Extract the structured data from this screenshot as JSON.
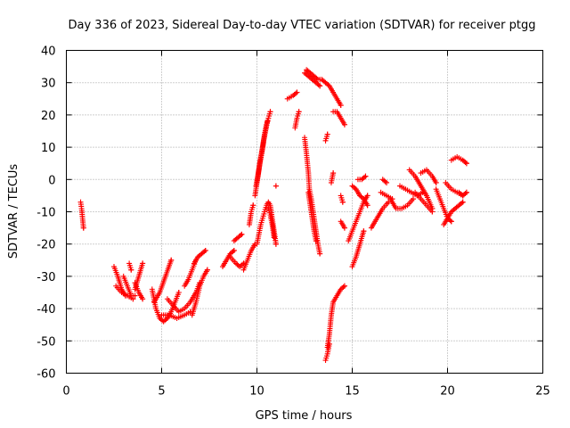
{
  "chart_data": {
    "type": "scatter",
    "title": "Day 336 of 2023, Sidereal Day-to-day VTEC variation (SDTVAR) for receiver ptgg",
    "xlabel": "GPS time / hours",
    "ylabel": "SDTVAR / TECUs",
    "xlim": [
      0,
      25
    ],
    "ylim": [
      -60,
      40
    ],
    "xticks": [
      0,
      5,
      10,
      15,
      20,
      25
    ],
    "yticks": [
      -60,
      -50,
      -40,
      -30,
      -20,
      -10,
      0,
      10,
      20,
      30,
      40
    ],
    "grid": true,
    "marker": "+",
    "color": "#ff0000",
    "series": [
      {
        "tracks": [
          [
            [
              0.75,
              -7
            ],
            [
              0.8,
              -9
            ],
            [
              0.85,
              -12
            ],
            [
              0.9,
              -15
            ]
          ],
          [
            [
              2.5,
              -27
            ],
            [
              2.7,
              -30
            ],
            [
              2.9,
              -34
            ],
            [
              3.1,
              -36
            ]
          ],
          [
            [
              2.6,
              -33
            ],
            [
              2.9,
              -35
            ],
            [
              3.2,
              -36
            ],
            [
              3.5,
              -37
            ]
          ],
          [
            [
              3.0,
              -30
            ],
            [
              3.2,
              -33
            ],
            [
              3.4,
              -36
            ],
            [
              3.6,
              -36
            ]
          ],
          [
            [
              3.3,
              -26
            ],
            [
              3.4,
              -28
            ]
          ],
          [
            [
              3.6,
              -32
            ],
            [
              3.8,
              -35
            ],
            [
              4.0,
              -37
            ]
          ],
          [
            [
              3.6,
              -34
            ],
            [
              3.8,
              -30
            ],
            [
              4.0,
              -26
            ]
          ],
          [
            [
              4.5,
              -34
            ],
            [
              4.7,
              -40
            ],
            [
              4.9,
              -43
            ],
            [
              5.1,
              -44
            ],
            [
              5.3,
              -43
            ],
            [
              5.5,
              -41
            ],
            [
              5.7,
              -38
            ],
            [
              5.9,
              -35
            ]
          ],
          [
            [
              4.6,
              -38
            ],
            [
              4.9,
              -35
            ],
            [
              5.2,
              -30
            ],
            [
              5.5,
              -25
            ]
          ],
          [
            [
              5.0,
              -42
            ],
            [
              5.4,
              -42
            ],
            [
              5.8,
              -43
            ],
            [
              6.2,
              -42
            ],
            [
              6.5,
              -41
            ]
          ],
          [
            [
              5.3,
              -37
            ],
            [
              5.6,
              -39
            ],
            [
              5.9,
              -41
            ],
            [
              6.2,
              -40
            ],
            [
              6.5,
              -38
            ],
            [
              6.8,
              -35
            ],
            [
              7.0,
              -32
            ]
          ],
          [
            [
              6.2,
              -33
            ],
            [
              6.4,
              -31
            ],
            [
              6.6,
              -28
            ],
            [
              6.8,
              -25
            ]
          ],
          [
            [
              6.6,
              -42
            ],
            [
              6.8,
              -38
            ],
            [
              7.0,
              -33
            ],
            [
              7.2,
              -30
            ],
            [
              7.4,
              -28
            ]
          ],
          [
            [
              6.7,
              -26
            ],
            [
              6.9,
              -24
            ],
            [
              7.1,
              -23
            ],
            [
              7.3,
              -22
            ]
          ],
          [
            [
              8.2,
              -27
            ],
            [
              8.4,
              -25
            ],
            [
              8.6,
              -23
            ],
            [
              8.8,
              -22
            ]
          ],
          [
            [
              8.6,
              -24
            ],
            [
              8.9,
              -26
            ],
            [
              9.1,
              -27
            ],
            [
              9.3,
              -26
            ]
          ],
          [
            [
              8.8,
              -19
            ],
            [
              9.0,
              -18
            ],
            [
              9.2,
              -17
            ]
          ],
          [
            [
              9.3,
              -28
            ],
            [
              9.5,
              -25
            ],
            [
              9.7,
              -22
            ],
            [
              9.9,
              -20
            ]
          ],
          [
            [
              9.6,
              -14
            ],
            [
              9.7,
              -10
            ],
            [
              9.8,
              -8
            ]
          ],
          [
            [
              9.9,
              -5
            ],
            [
              10.0,
              -1
            ],
            [
              10.1,
              3
            ],
            [
              10.2,
              7
            ],
            [
              10.3,
              10
            ],
            [
              10.4,
              14
            ],
            [
              10.5,
              17
            ],
            [
              10.6,
              19
            ],
            [
              10.7,
              21
            ]
          ],
          [
            [
              9.95,
              -2
            ],
            [
              10.05,
              1
            ],
            [
              10.15,
              5
            ],
            [
              10.25,
              8
            ],
            [
              10.35,
              12
            ],
            [
              10.45,
              15
            ],
            [
              10.55,
              18
            ]
          ],
          [
            [
              10.0,
              -20
            ],
            [
              10.1,
              -17
            ],
            [
              10.2,
              -14
            ],
            [
              10.3,
              -12
            ],
            [
              10.4,
              -10
            ],
            [
              10.5,
              -8
            ],
            [
              10.6,
              -7
            ],
            [
              10.7,
              -8
            ],
            [
              10.8,
              -12
            ],
            [
              10.9,
              -16
            ],
            [
              11.0,
              -20
            ]
          ],
          [
            [
              10.6,
              -9
            ],
            [
              10.7,
              -11
            ],
            [
              10.8,
              -14
            ],
            [
              10.9,
              -18
            ]
          ],
          [
            [
              11.0,
              -2
            ]
          ],
          [
            [
              11.6,
              25
            ],
            [
              11.9,
              26
            ],
            [
              12.1,
              27
            ]
          ],
          [
            [
              12.0,
              16
            ],
            [
              12.1,
              19
            ],
            [
              12.2,
              21
            ]
          ],
          [
            [
              12.5,
              33
            ],
            [
              12.7,
              32
            ],
            [
              12.9,
              31
            ],
            [
              13.1,
              30
            ],
            [
              13.3,
              29
            ]
          ],
          [
            [
              12.6,
              34
            ],
            [
              12.8,
              33
            ],
            [
              13.0,
              32
            ],
            [
              13.2,
              31
            ],
            [
              13.4,
              31
            ],
            [
              13.6,
              30
            ],
            [
              13.8,
              29
            ],
            [
              14.0,
              27
            ],
            [
              14.2,
              25
            ],
            [
              14.4,
              23
            ]
          ],
          [
            [
              12.5,
              13
            ],
            [
              12.6,
              8
            ],
            [
              12.7,
              2
            ],
            [
              12.75,
              -3
            ],
            [
              12.85,
              -6
            ],
            [
              13.0,
              -12
            ],
            [
              13.1,
              -16
            ],
            [
              13.2,
              -20
            ],
            [
              13.3,
              -23
            ]
          ],
          [
            [
              12.7,
              -4
            ],
            [
              12.8,
              -8
            ],
            [
              12.9,
              -12
            ],
            [
              13.0,
              -16
            ],
            [
              13.1,
              -19
            ]
          ],
          [
            [
              13.6,
              12
            ],
            [
              13.7,
              14
            ]
          ],
          [
            [
              13.7,
              -52
            ],
            [
              13.8,
              -48
            ],
            [
              13.9,
              -42
            ],
            [
              14.0,
              -38
            ],
            [
              14.2,
              -36
            ],
            [
              14.4,
              -34
            ],
            [
              14.6,
              -33
            ]
          ],
          [
            [
              13.6,
              -56
            ],
            [
              13.7,
              -54
            ],
            [
              13.8,
              -51
            ]
          ],
          [
            [
              13.9,
              -1
            ],
            [
              14.0,
              2
            ]
          ],
          [
            [
              14.0,
              21
            ],
            [
              14.2,
              21
            ],
            [
              14.4,
              19
            ],
            [
              14.6,
              17
            ]
          ],
          [
            [
              14.4,
              -13
            ],
            [
              14.6,
              -15
            ]
          ],
          [
            [
              14.4,
              -5
            ],
            [
              14.5,
              -7
            ]
          ],
          [
            [
              14.8,
              -19
            ],
            [
              15.0,
              -16
            ],
            [
              15.2,
              -13
            ],
            [
              15.4,
              -10
            ],
            [
              15.6,
              -7
            ],
            [
              15.8,
              -5
            ]
          ],
          [
            [
              15.0,
              -27
            ],
            [
              15.2,
              -24
            ],
            [
              15.4,
              -20
            ],
            [
              15.6,
              -16
            ]
          ],
          [
            [
              15.0,
              -2
            ],
            [
              15.2,
              -3
            ],
            [
              15.4,
              -5
            ],
            [
              15.6,
              -6
            ],
            [
              15.8,
              -8
            ]
          ],
          [
            [
              15.3,
              0
            ],
            [
              15.5,
              0
            ],
            [
              15.7,
              1
            ]
          ],
          [
            [
              16.0,
              -15
            ],
            [
              16.3,
              -12
            ],
            [
              16.6,
              -9
            ],
            [
              16.9,
              -7
            ]
          ],
          [
            [
              16.5,
              -4
            ],
            [
              16.8,
              -5
            ],
            [
              17.1,
              -6
            ]
          ],
          [
            [
              16.6,
              0
            ],
            [
              16.8,
              -1
            ]
          ],
          [
            [
              17.0,
              -6
            ],
            [
              17.3,
              -9
            ],
            [
              17.6,
              -9
            ],
            [
              17.9,
              -8
            ],
            [
              18.2,
              -6
            ]
          ],
          [
            [
              17.5,
              -2
            ],
            [
              17.8,
              -3
            ],
            [
              18.1,
              -4
            ],
            [
              18.4,
              -5
            ],
            [
              18.7,
              -4
            ]
          ],
          [
            [
              18.0,
              3
            ],
            [
              18.3,
              1
            ],
            [
              18.6,
              -2
            ],
            [
              18.9,
              -5
            ],
            [
              19.2,
              -9
            ]
          ],
          [
            [
              18.3,
              -4
            ],
            [
              18.6,
              -6
            ],
            [
              18.9,
              -8
            ],
            [
              19.2,
              -10
            ]
          ],
          [
            [
              18.6,
              2
            ],
            [
              18.9,
              3
            ],
            [
              19.2,
              1
            ],
            [
              19.4,
              -1
            ]
          ],
          [
            [
              19.4,
              -3
            ],
            [
              19.6,
              -6
            ],
            [
              19.8,
              -9
            ],
            [
              20.0,
              -12
            ],
            [
              20.2,
              -13
            ]
          ],
          [
            [
              19.8,
              -14
            ],
            [
              20.0,
              -12
            ],
            [
              20.2,
              -10
            ],
            [
              20.4,
              -9
            ],
            [
              20.6,
              -8
            ],
            [
              20.8,
              -7
            ]
          ],
          [
            [
              19.9,
              -1
            ],
            [
              20.2,
              -3
            ],
            [
              20.5,
              -4
            ],
            [
              20.8,
              -5
            ]
          ],
          [
            [
              20.2,
              6
            ],
            [
              20.5,
              7
            ],
            [
              20.8,
              6
            ],
            [
              21.0,
              5
            ]
          ],
          [
            [
              20.6,
              -4
            ],
            [
              20.8,
              -5
            ],
            [
              21.0,
              -4
            ]
          ]
        ]
      }
    ]
  }
}
